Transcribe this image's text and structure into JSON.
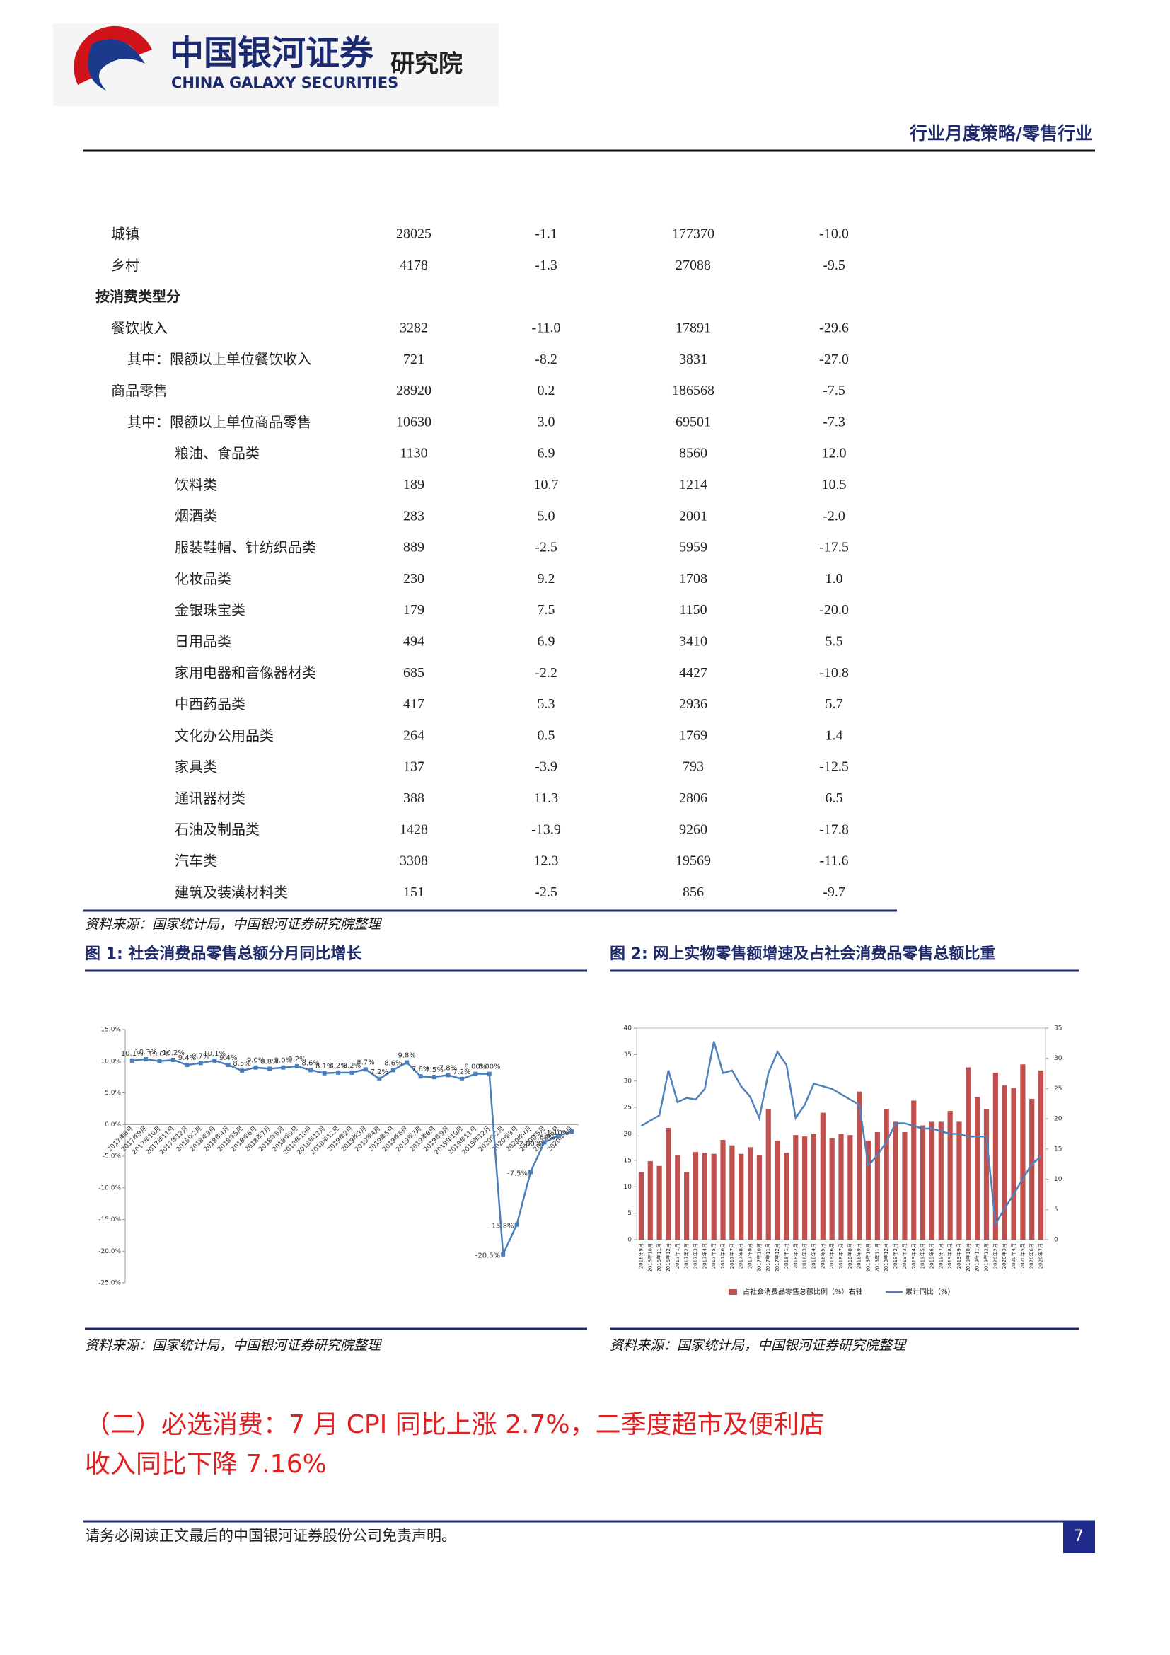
{
  "header": {
    "brand": "中国银河证券",
    "brand_en": "CHINA GALAXY SECURITIES",
    "institute": "研究院",
    "category": "行业月度策略/零售行业"
  },
  "table": {
    "rows": [
      [
        "城镇",
        "28025",
        "-1.1",
        "177370",
        "-10.0"
      ],
      [
        "乡村",
        "4178",
        "-1.3",
        "27088",
        "-9.5"
      ],
      [
        "按消费类型分"
      ],
      [
        "餐饮收入",
        "3282",
        "-11.0",
        "17891",
        "-29.6"
      ],
      [
        "其中：限额以上单位餐饮收入",
        "721",
        "-8.2",
        "3831",
        "-27.0"
      ],
      [
        "商品零售",
        "28920",
        "0.2",
        "186568",
        "-7.5"
      ],
      [
        "其中：限额以上单位商品零售",
        "10630",
        "3.0",
        "69501",
        "-7.3"
      ],
      [
        "粮油、食品类",
        "1130",
        "6.9",
        "8560",
        "12.0"
      ],
      [
        "饮料类",
        "189",
        "10.7",
        "1214",
        "10.5"
      ],
      [
        "烟酒类",
        "283",
        "5.0",
        "2001",
        "-2.0"
      ],
      [
        "服装鞋帽、针纺织品类",
        "889",
        "-2.5",
        "5959",
        "-17.5"
      ],
      [
        "化妆品类",
        "230",
        "9.2",
        "1708",
        "1.0"
      ],
      [
        "金银珠宝类",
        "179",
        "7.5",
        "1150",
        "-20.0"
      ],
      [
        "日用品类",
        "494",
        "6.9",
        "3410",
        "5.5"
      ],
      [
        "家用电器和音像器材类",
        "685",
        "-2.2",
        "4427",
        "-10.8"
      ],
      [
        "中西药品类",
        "417",
        "5.3",
        "2936",
        "5.7"
      ],
      [
        "文化办公用品类",
        "264",
        "0.5",
        "1769",
        "1.4"
      ],
      [
        "家具类",
        "137",
        "-3.9",
        "793",
        "-12.5"
      ],
      [
        "通讯器材类",
        "388",
        "11.3",
        "2806",
        "6.5"
      ],
      [
        "石油及制品类",
        "1428",
        "-13.9",
        "9260",
        "-17.8"
      ],
      [
        "汽车类",
        "3308",
        "12.3",
        "19569",
        "-11.6"
      ],
      [
        "建筑及装潢材料类",
        "151",
        "-2.5",
        "856",
        "-9.7"
      ]
    ],
    "source": "资料来源：国家统计局，中国银河证券研究院整理"
  },
  "figures": [
    {
      "caption": "图 1:  社会消费品零售总额分月同比增长",
      "source": "资料来源：国家统计局，中国银河证券研究院整理",
      "chart": {
        "type": "line",
        "color": "#4a7ebb",
        "categories": [
          "2017年8月",
          "2017年9月",
          "2017年10月",
          "2017年11月",
          "2017年12月",
          "2018年2月",
          "2018年3月",
          "2018年4月",
          "2018年5月",
          "2018年6月",
          "2018年7月",
          "2018年8月",
          "2018年9月",
          "2018年10月",
          "2018年11月",
          "2018年12月",
          "2019年2月",
          "2019年3月",
          "2019年4月",
          "2019年5月",
          "2019年6月",
          "2019年7月",
          "2019年8月",
          "2019年9月",
          "2019年10月",
          "2019年11月",
          "2019年12月",
          "2020年2月",
          "2020年3月",
          "2020年4月",
          "2020年5月",
          "2020年6月",
          "2020年7月"
        ],
        "values": [
          10.1,
          10.3,
          10.0,
          10.2,
          9.4,
          9.7,
          10.1,
          9.4,
          8.5,
          9.0,
          8.8,
          9.0,
          9.2,
          8.6,
          8.1,
          8.2,
          8.2,
          8.7,
          7.2,
          8.6,
          9.8,
          7.6,
          7.5,
          7.8,
          7.2,
          8.0,
          8.0,
          -20.5,
          -15.8,
          -7.5,
          -2.8,
          -1.8,
          -1.1
        ],
        "value_labels": [
          "10.1%",
          "10.3%",
          "10.0%",
          "10.2%",
          "9.4%",
          "9.7%",
          "10.1%",
          "9.4%",
          "8.5%",
          "9.0%",
          "8.8%",
          "9.0%",
          "9.2%",
          "8.6%",
          "8.1%",
          "8.2%",
          "8.2%",
          "8.7%",
          "7.2%",
          "8.6%",
          "9.8%",
          "7.6%",
          "7.5%",
          "7.8%",
          "7.2%",
          "8.00%",
          "8.00%",
          "-20.5%",
          "-15.8%",
          "-7.5%",
          "-2.80%",
          "-1.80%",
          "-1.10%"
        ],
        "ylim": [
          -25,
          15
        ],
        "yticks": [
          {
            "value": 15,
            "label": "15.0%"
          },
          {
            "value": 10,
            "label": "10.0%"
          },
          {
            "value": 5,
            "label": "5.0%"
          },
          {
            "value": 0,
            "label": "0.0%"
          },
          {
            "value": -5,
            "label": "-5.0%"
          },
          {
            "value": -10,
            "label": "-10.0%"
          },
          {
            "value": -15,
            "label": "-15.0%"
          },
          {
            "value": -20,
            "label": "-20.0%"
          },
          {
            "value": -25,
            "label": "-25.0%"
          }
        ]
      }
    },
    {
      "caption": "图 2:  网上实物零售额增速及占社会消费品零售总额比重",
      "source": "资料来源：国家统计局，中国银河证券研究院整理",
      "chart": {
        "type": "bar_line",
        "categories": [
          "2016年9月",
          "2016年10月",
          "2016年11月",
          "2016年12月",
          "2017年1月",
          "2017年2月",
          "2017年3月",
          "2017年4月",
          "2017年5月",
          "2017年6月",
          "2017年7月",
          "2017年8月",
          "2017年9月",
          "2017年10月",
          "2017年11月",
          "2017年12月",
          "2018年1月",
          "2018年2月",
          "2018年3月",
          "2018年4月",
          "2018年5月",
          "2018年6月",
          "2018年7月",
          "2018年8月",
          "2018年9月",
          "2018年10月",
          "2018年11月",
          "2018年12月",
          "2019年2月",
          "2019年3月",
          "2019年4月",
          "2019年5月",
          "2019年6月",
          "2019年7月",
          "2019年8月",
          "2019年9月",
          "2019年10月",
          "2019年11月",
          "2019年12月",
          "2020年2月",
          "2020年3月",
          "2020年4月",
          "2020年5月",
          "2020年6月",
          "2020年7月"
        ],
        "series": [
          {
            "name": "占社会消费品零售总额比例（%）右轴",
            "type": "bar",
            "axis": "y2",
            "color": "#c0504d",
            "values": [
              11.2,
              13,
              12.2,
              18.5,
              14,
              11.2,
              14.5,
              14.4,
              14.2,
              16.5,
              15.6,
              14.2,
              15.3,
              14,
              21.6,
              16.4,
              14.4,
              17.3,
              17.1,
              17.5,
              21,
              16.8,
              17.5,
              17.3,
              24.5,
              16.4,
              17.8,
              21.6,
              19.5,
              17.8,
              23,
              18.9,
              19.5,
              19.5,
              21.3,
              19.5,
              28.5,
              23.6,
              21.6,
              27.6,
              25.5,
              25.1,
              29,
              23.3,
              28
            ]
          },
          {
            "name": "累计同比（%）",
            "type": "line",
            "color": "#4f81bd",
            "values": [
              21.5,
              22.5,
              23.5,
              32,
              26,
              26.8,
              26.5,
              28.5,
              37.5,
              31.5,
              32,
              29,
              27,
              23,
              31.5,
              35.5,
              33,
              23,
              25.5,
              29.5,
              29,
              28.5,
              27.5,
              26.5,
              25.5,
              14,
              16,
              18.5,
              22,
              22,
              21.5,
              21,
              21,
              20.5,
              20,
              20,
              19.5,
              19.5,
              19.5,
              3,
              5.9,
              8.6,
              11.5,
              14.3,
              15.7
            ]
          }
        ],
        "ylim": [
          0,
          40
        ],
        "yticks": [
          0,
          5,
          10,
          15,
          20,
          25,
          30,
          35,
          40
        ],
        "y2lim": [
          0,
          35
        ],
        "y2ticks": [
          0,
          5,
          10,
          15,
          20,
          25,
          30,
          35
        ]
      }
    }
  ],
  "section_heading": [
    "（二）必选消费：7 月 CPI 同比上涨 2.7%，二季度超市及便利店",
    "收入同比下降 7.16%"
  ],
  "footer": {
    "disclaimer": "请务必阅读正文最后的中国银河证券股份公司免责声明。",
    "page": "7"
  }
}
